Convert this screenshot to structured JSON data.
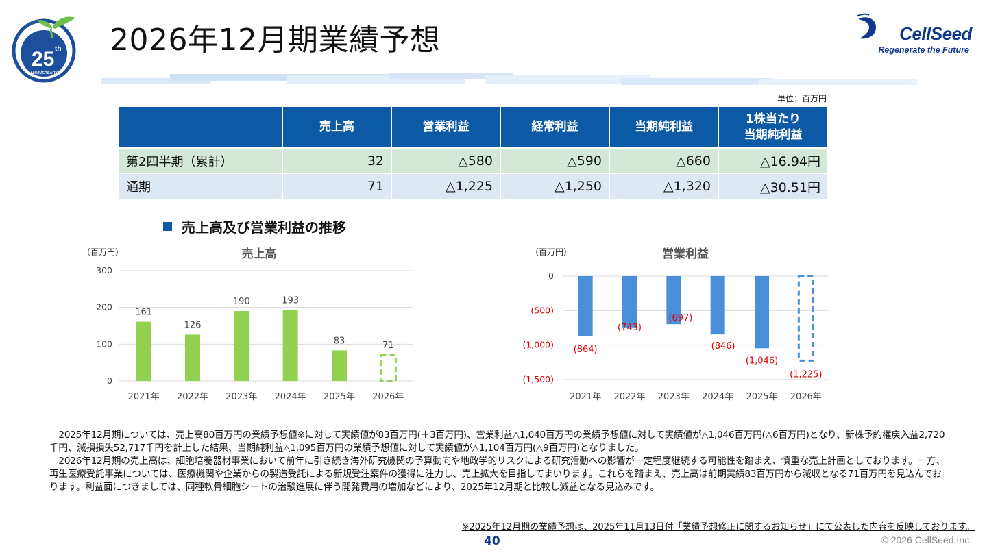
{
  "title": "2026年12月期業績予想",
  "logo_25": {
    "number": "25",
    "suffix": "th",
    "word": "ANNIVERSARY"
  },
  "brand": {
    "name": "CellSeed",
    "tagline": "Regenerate the Future"
  },
  "unit_note": "単位：百万円",
  "table": {
    "headers": [
      "",
      "売上高",
      "営業利益",
      "経常利益",
      "当期純利益",
      "1株当たり\n当期純利益"
    ],
    "rows": [
      {
        "label": "第2四半期（累計）",
        "cells": [
          "32",
          "△580",
          "△590",
          "△660",
          "△16.94円"
        ]
      },
      {
        "label": "通期",
        "cells": [
          "71",
          "△1,225",
          "△1,250",
          "△1,320",
          "△30.51円"
        ]
      }
    ]
  },
  "section_title": "売上高及び営業利益の推移",
  "chart_data": [
    {
      "type": "bar",
      "title": "売上高",
      "ylabel": "（百万円）",
      "categories": [
        "2021年",
        "2022年",
        "2023年",
        "2024年",
        "2025年",
        "2026年"
      ],
      "values": [
        161,
        126,
        190,
        193,
        83,
        71
      ],
      "data_labels": [
        "161",
        "126",
        "190",
        "193",
        "83",
        "71"
      ],
      "forecast_index": 5,
      "ylim": [
        0,
        300
      ],
      "yticks": [
        "0",
        "100",
        "200",
        "300"
      ],
      "ytick_values": [
        0,
        100,
        200,
        300
      ],
      "grid": true,
      "color": "#92d050"
    },
    {
      "type": "bar",
      "title": "営業利益",
      "ylabel": "（百万円）",
      "categories": [
        "2021年",
        "2022年",
        "2023年",
        "2024年",
        "2025年",
        "2026年"
      ],
      "values": [
        -864,
        -743,
        -697,
        -846,
        -1046,
        -1225
      ],
      "data_labels": [
        "(864)",
        "(743)",
        "(697)",
        "(846)",
        "(1,046)",
        "(1,225)"
      ],
      "forecast_index": 5,
      "ylim": [
        -1500,
        0
      ],
      "yticks": [
        "0",
        "(500)",
        "(1,000)",
        "(1,500)"
      ],
      "ytick_values": [
        0,
        -500,
        -1000,
        -1500
      ],
      "grid": true,
      "color": "#4a90d9",
      "label_color": "#e00000"
    }
  ],
  "body": {
    "paragraphs": [
      "　2025年12月期については、売上高80百万円の業績予想値※に対して実績値が83百万円(＋3百万円)、営業利益△1,040百万円の業績予想値に対して実績値が△1,046百万円(△6百万円)となり、新株予約権戻入益2,720千円、減損損失52,717千円を計上した結果、当期純利益△1,095百万円の業績予想値に対して実績値が△1,104百万円(△9百万円)となりました。",
      "　2026年12月期の売上高は、細胞培養器材事業において前年に引き続き海外研究機関の予算動向や地政学的リスクによる研究活動への影響が一定程度継続する可能性を踏まえ、慎重な売上計画としております。一方、再生医療受託事業については、医療機関や企業からの製造受託による新規受注案件の獲得に注力し、売上拡大を目指してまいります。これらを踏まえ、売上高は前期実績83百万円から減収となる71百万円を見込んでおります。利益面につきましては、同種軟骨細胞シートの治験進展に伴う開発費用の増加などにより、2025年12月期と比較し減益となる見込みです。"
    ]
  },
  "footnote": "※2025年12月期の業績予想は、2025年11月13日付「業績予想修正に関するお知らせ」にて公表した内容を反映しております。",
  "page_number": "40",
  "copyright": "© 2026 CellSeed Inc."
}
